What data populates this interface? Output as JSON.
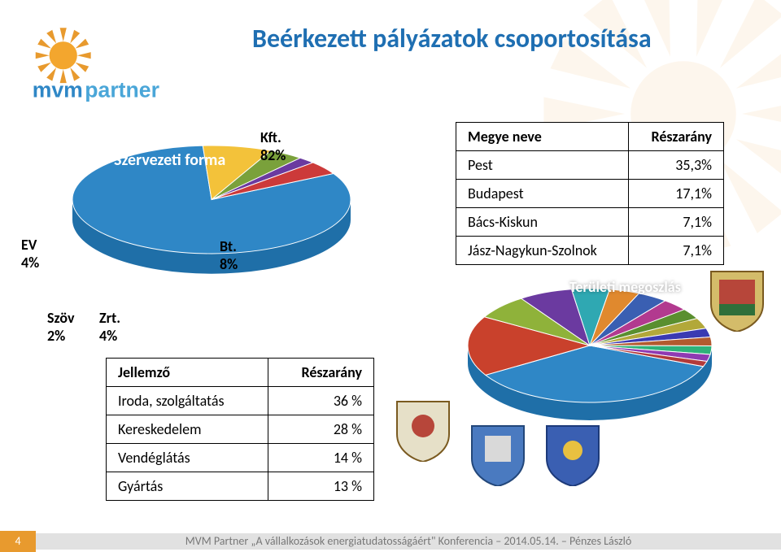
{
  "title": "Beérkezett pályázatok csoportosítása",
  "pie1": {
    "form_label": "Szervezeti forma",
    "slices": [
      {
        "name": "Kft.",
        "pct": 82,
        "color": "#2f87c6"
      },
      {
        "name": "Bt.",
        "pct": 8,
        "color": "#f3c23a"
      },
      {
        "name": "Zrt.",
        "pct": 4,
        "color": "#7aa13b"
      },
      {
        "name": "Szöv",
        "pct": 2,
        "color": "#6b3aa0"
      },
      {
        "name": "EV",
        "pct": 4,
        "color": "#cc3a3a"
      }
    ],
    "labels": {
      "kft": {
        "name": "Kft.",
        "val": "82%"
      },
      "bt": {
        "name": "Bt.",
        "val": "8%"
      },
      "zrt": {
        "name": "Zrt.",
        "val": "4%"
      },
      "szov": {
        "name": "Szöv",
        "val": "2%"
      },
      "ev": {
        "name": "EV",
        "val": "4%"
      }
    },
    "side_color": "#1f6fa8"
  },
  "table1": {
    "headers": [
      "Megye neve",
      "Részarány"
    ],
    "rows": [
      [
        "Pest",
        "35,3%"
      ],
      [
        "Budapest",
        "17,1%"
      ],
      [
        "Bács-Kiskun",
        "7,1%"
      ],
      [
        "Jász-Nagykun-Szolnok",
        "7,1%"
      ]
    ]
  },
  "pie2": {
    "label": "Területi megoszlás",
    "slice_colors": [
      "#2f87c6",
      "#c9412c",
      "#8fb23a",
      "#6b3aa0",
      "#2fa8b2",
      "#e0892e",
      "#3a5fb2",
      "#b23a8f",
      "#5a8f2f",
      "#b2a83a",
      "#3a3ab2",
      "#b25a2f",
      "#2fb27a",
      "#8f3ab2",
      "#b23a3a"
    ],
    "slice_pcts": [
      35.3,
      17.1,
      7.1,
      7.1,
      5,
      4,
      4,
      3.5,
      3,
      3,
      2.5,
      2.5,
      2.4,
      2,
      1.5
    ],
    "side_color": "#1f6fa8"
  },
  "table2": {
    "headers": [
      "Jellemző",
      "Részarány"
    ],
    "rows": [
      [
        "Iroda, szolgáltatás",
        "36 %"
      ],
      [
        "Kereskedelem",
        "28 %"
      ],
      [
        "Vendéglátás",
        "14 %"
      ],
      [
        "Gyártás",
        "13 %"
      ]
    ]
  },
  "footer": {
    "page": "4",
    "text": "MVM Partner „A vállalkozások energiatudatosságáért\" Konferencia – 2014.05.14.  –  Pénzes László"
  },
  "logo": {
    "brand_top": "mvm",
    "brand_bot": "partner",
    "sun": "#eda12c",
    "blue": "#2f87c6"
  }
}
